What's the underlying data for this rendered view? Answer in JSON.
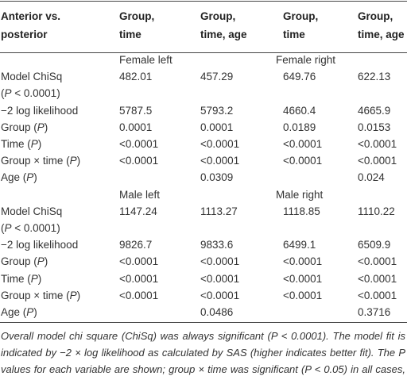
{
  "table": {
    "header": [
      [
        "Anterior vs.",
        "posterior"
      ],
      [
        "Group,",
        "time"
      ],
      [
        "Group,",
        "time, age"
      ],
      [
        "Group,",
        "time"
      ],
      [
        "Group,",
        "time, age"
      ]
    ],
    "sections": [
      {
        "labels": [
          "Female left",
          "Female right"
        ],
        "rows": [
          {
            "label": [
              [
                "Model ChiSq"
              ],
              [
                "(",
                "P",
                " < 0.0001)"
              ]
            ],
            "cells": [
              "482.01",
              "457.29",
              "649.76",
              "622.13"
            ]
          },
          {
            "label": [
              [
                "−2 log likelihood"
              ]
            ],
            "cells": [
              "5787.5",
              "5793.2",
              "4660.4",
              "4665.9"
            ]
          },
          {
            "label": [
              [
                "Group (",
                "P",
                ")"
              ]
            ],
            "cells": [
              "0.0001",
              "0.0001",
              "0.0189",
              "0.0153"
            ]
          },
          {
            "label": [
              [
                "Time (",
                "P",
                ")"
              ]
            ],
            "cells": [
              "<0.0001",
              "<0.0001",
              "<0.0001",
              "<0.0001"
            ]
          },
          {
            "label": [
              [
                "Group × time (",
                "P",
                ")"
              ]
            ],
            "cells": [
              "<0.0001",
              "<0.0001",
              "<0.0001",
              "<0.0001"
            ]
          },
          {
            "label": [
              [
                "Age (",
                "P",
                ")"
              ]
            ],
            "cells": [
              null,
              "0.0309",
              null,
              "0.024"
            ]
          }
        ]
      },
      {
        "labels": [
          "Male left",
          "Male right"
        ],
        "rows": [
          {
            "label": [
              [
                "Model ChiSq"
              ],
              [
                "(",
                "P",
                " < 0.0001)"
              ]
            ],
            "cells": [
              "1147.24",
              "1113.27",
              "1118.85",
              "1110.22"
            ]
          },
          {
            "label": [
              [
                "−2 log likelihood"
              ]
            ],
            "cells": [
              "9826.7",
              "9833.6",
              "6499.1",
              "6509.9"
            ]
          },
          {
            "label": [
              [
                "Group (",
                "P",
                ")"
              ]
            ],
            "cells": [
              "<0.0001",
              "<0.0001",
              "<0.0001",
              "<0.0001"
            ]
          },
          {
            "label": [
              [
                "Time (",
                "P",
                ")"
              ]
            ],
            "cells": [
              "<0.0001",
              "<0.0001",
              "<0.0001",
              "<0.0001"
            ]
          },
          {
            "label": [
              [
                "Group × time (",
                "P",
                ")"
              ]
            ],
            "cells": [
              "<0.0001",
              "<0.0001",
              "<0.0001",
              "<0.0001"
            ]
          },
          {
            "label": [
              [
                "Age (",
                "P",
                ")"
              ]
            ],
            "cells": [
              null,
              "0.0486",
              null,
              "0.3716"
            ]
          }
        ]
      }
    ],
    "footnote": "Overall model chi square (ChiSq) was always significant (P < 0.0001). The model fit is indicated by −2 × log likelihood as calculated by SAS (higher indicates better fit). The P values for each variable are shown; group × time was significant (P < 0.05) in all cases, and age was significant for all models apart from male right."
  }
}
